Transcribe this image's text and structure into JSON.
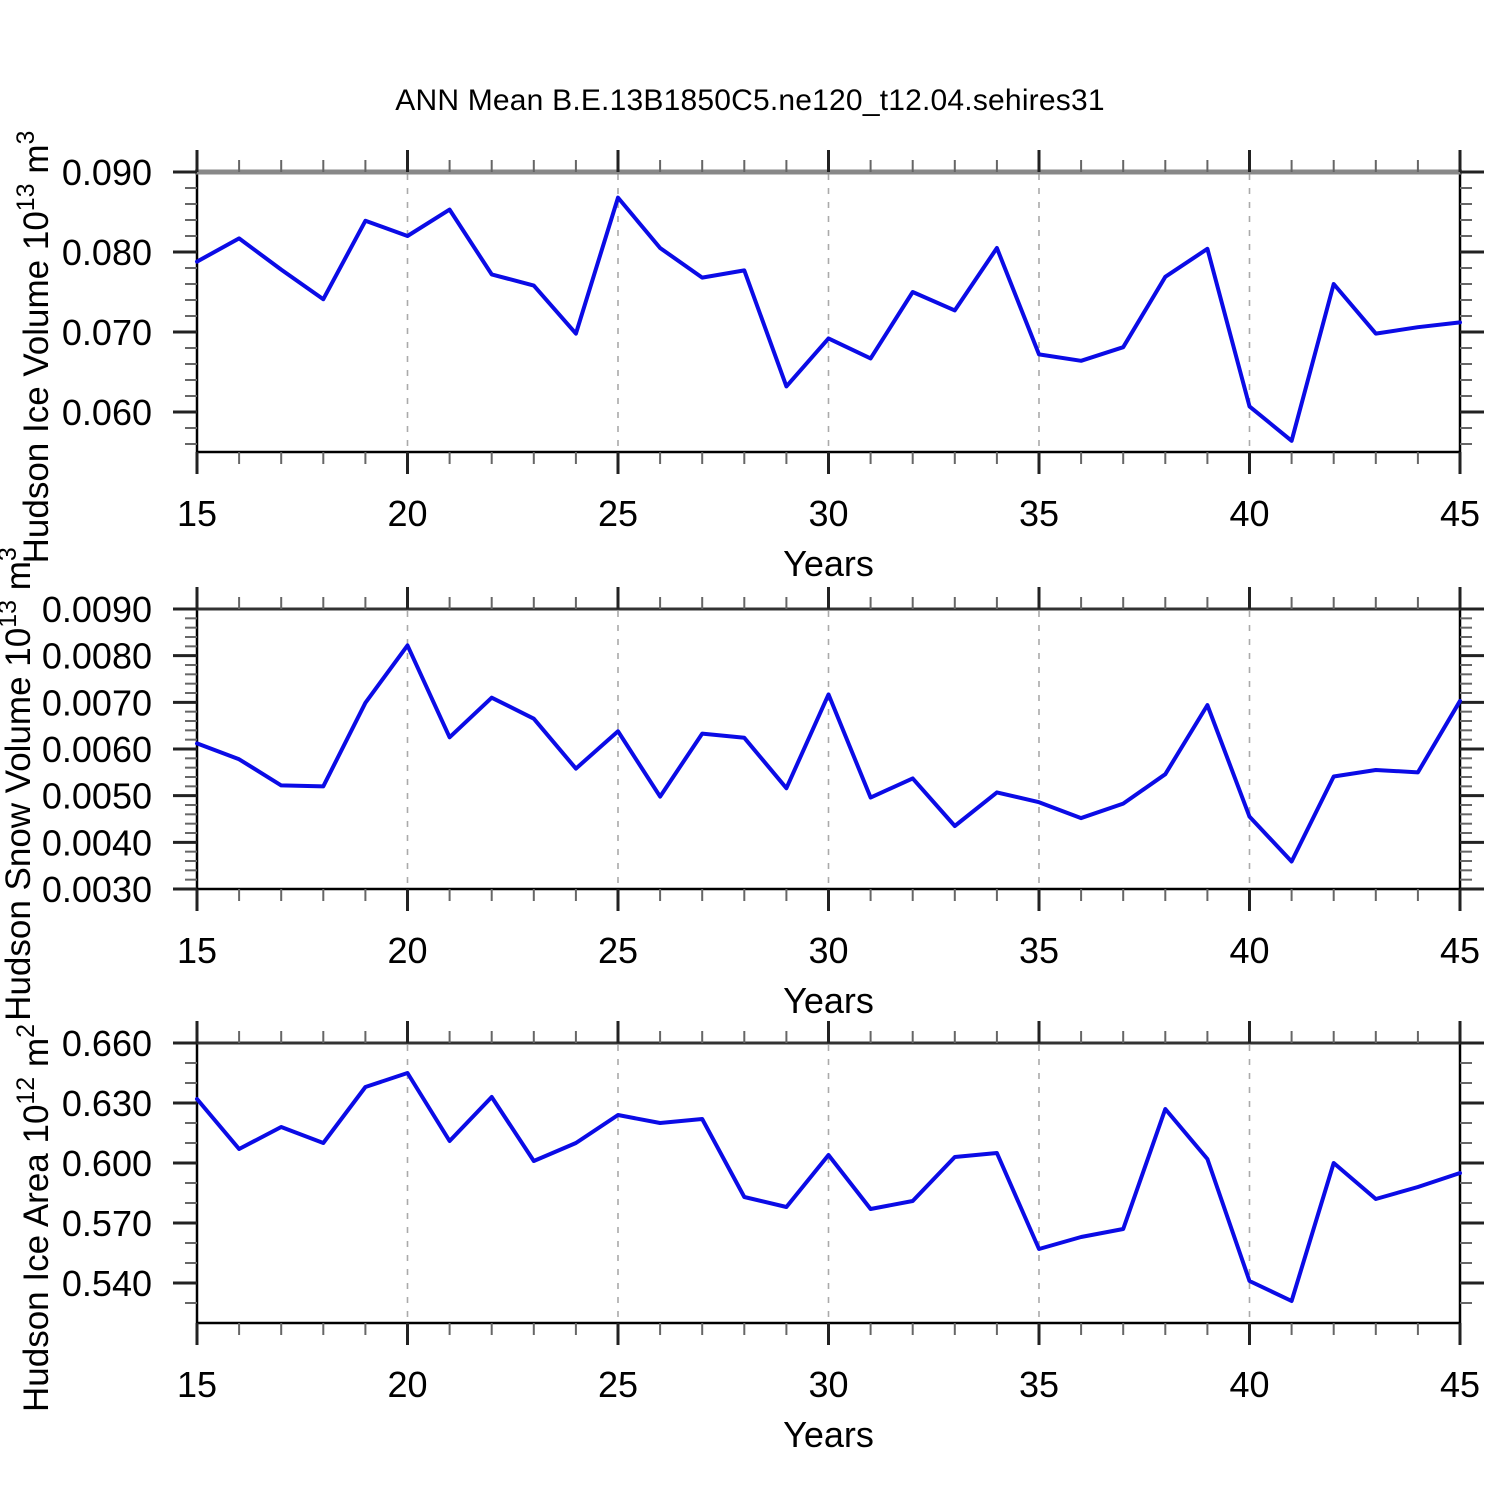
{
  "title": "ANN Mean B.E.13B1850C5.ne120_t12.04.sehires31",
  "colors": {
    "line": "#0b0be6",
    "frame": "#000000",
    "top_edge_panel1": "#888888",
    "top_edge_other": "#333333",
    "major_tick": "#222222",
    "minor_tick": "#666666",
    "grid": "#aaaaaa"
  },
  "chart_data": [
    {
      "type": "line",
      "name": "hudson-ice-volume-panel",
      "ylabel": {
        "pre": "Hudson Ice Volume 10",
        "sup": "13",
        "mid": " m",
        "sup2": "3"
      },
      "xlabel": "Years",
      "x": [
        15,
        16,
        17,
        18,
        19,
        20,
        21,
        22,
        23,
        24,
        25,
        26,
        27,
        28,
        29,
        30,
        31,
        32,
        33,
        34,
        35,
        36,
        37,
        38,
        39,
        40,
        41,
        42,
        43,
        44,
        45
      ],
      "values": [
        0.0788,
        0.0817,
        0.0778,
        0.0741,
        0.0839,
        0.082,
        0.0853,
        0.0772,
        0.0758,
        0.0698,
        0.0868,
        0.0805,
        0.0768,
        0.0777,
        0.0632,
        0.0692,
        0.0667,
        0.075,
        0.0727,
        0.0805,
        0.0672,
        0.0664,
        0.0681,
        0.0769,
        0.0804,
        0.0607,
        0.0564,
        0.076,
        0.0698,
        0.0706,
        0.0712
      ],
      "ylim": [
        0.055,
        0.09
      ],
      "yticks": [
        0.06,
        0.07,
        0.08,
        0.09
      ],
      "ytick_labels": [
        "0.060",
        "0.070",
        "0.080",
        "0.090"
      ],
      "ytick_minor_step": 0.002,
      "xlim": [
        15,
        45
      ],
      "xticks": [
        15,
        20,
        25,
        30,
        35,
        40,
        45
      ],
      "xtick_minor_step": 1,
      "grid_years": [
        20,
        25,
        30,
        35,
        40
      ],
      "grid_on": true,
      "legend": "none"
    },
    {
      "type": "line",
      "name": "hudson-snow-volume-panel",
      "ylabel": {
        "pre": "Hudson Snow Volume 10",
        "sup": "13",
        "mid": " m",
        "sup2": "3"
      },
      "xlabel": "Years",
      "x": [
        15,
        16,
        17,
        18,
        19,
        20,
        21,
        22,
        23,
        24,
        25,
        26,
        27,
        28,
        29,
        30,
        31,
        32,
        33,
        34,
        35,
        36,
        37,
        38,
        39,
        40,
        41,
        42,
        43,
        44,
        45
      ],
      "values": [
        0.00612,
        0.00578,
        0.00522,
        0.0052,
        0.00699,
        0.00822,
        0.00625,
        0.0071,
        0.00665,
        0.00558,
        0.00638,
        0.00498,
        0.00633,
        0.00624,
        0.00516,
        0.00717,
        0.00496,
        0.00537,
        0.00435,
        0.00507,
        0.00486,
        0.00452,
        0.00483,
        0.00546,
        0.00694,
        0.00455,
        0.00359,
        0.00541,
        0.00555,
        0.0055,
        0.00703
      ],
      "ylim": [
        0.003,
        0.009
      ],
      "yticks": [
        0.003,
        0.004,
        0.005,
        0.006,
        0.007,
        0.008,
        0.009
      ],
      "ytick_labels": [
        "0.0030",
        "0.0040",
        "0.0050",
        "0.0060",
        "0.0070",
        "0.0080",
        "0.0090"
      ],
      "ytick_minor_step": 0.0002,
      "xlim": [
        15,
        45
      ],
      "xticks": [
        15,
        20,
        25,
        30,
        35,
        40,
        45
      ],
      "xtick_minor_step": 1,
      "grid_years": [
        20,
        25,
        30,
        35,
        40
      ],
      "grid_on": true,
      "legend": "none"
    },
    {
      "type": "line",
      "name": "hudson-ice-area-panel",
      "ylabel": {
        "pre": "Hudson Ice Area 10",
        "sup": "12",
        "mid": " m",
        "sup2": "2"
      },
      "xlabel": "Years",
      "x": [
        15,
        16,
        17,
        18,
        19,
        20,
        21,
        22,
        23,
        24,
        25,
        26,
        27,
        28,
        29,
        30,
        31,
        32,
        33,
        34,
        35,
        36,
        37,
        38,
        39,
        40,
        41,
        42,
        43,
        44,
        45
      ],
      "values": [
        0.632,
        0.607,
        0.618,
        0.61,
        0.638,
        0.645,
        0.611,
        0.633,
        0.601,
        0.61,
        0.624,
        0.62,
        0.622,
        0.583,
        0.578,
        0.604,
        0.577,
        0.581,
        0.603,
        0.605,
        0.557,
        0.563,
        0.567,
        0.627,
        0.602,
        0.541,
        0.531,
        0.6,
        0.582,
        0.588,
        0.595
      ],
      "ylim": [
        0.52,
        0.66
      ],
      "yticks": [
        0.54,
        0.57,
        0.6,
        0.63,
        0.66
      ],
      "ytick_labels": [
        "0.540",
        "0.570",
        "0.600",
        "0.630",
        "0.660"
      ],
      "ytick_minor_step": 0.01,
      "xlim": [
        15,
        45
      ],
      "xticks": [
        15,
        20,
        25,
        30,
        35,
        40,
        45
      ],
      "xtick_minor_step": 1,
      "grid_years": [
        20,
        25,
        30,
        35,
        40
      ],
      "grid_on": true,
      "legend": "none"
    }
  ]
}
